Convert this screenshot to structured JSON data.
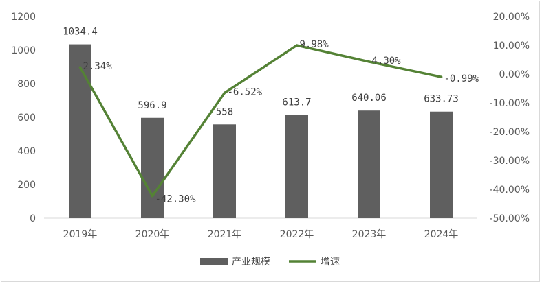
{
  "chart_data": {
    "type": "bar",
    "categories": [
      "2019年",
      "2020年",
      "2021年",
      "2022年",
      "2023年",
      "2024年"
    ],
    "series": [
      {
        "name": "产业规模",
        "type": "bar",
        "axis": "left",
        "color": "#5f5f5f",
        "values": [
          1034.4,
          596.9,
          558,
          613.7,
          640.06,
          633.73
        ],
        "labels": [
          "1034.4",
          "596.9",
          "558",
          "613.7",
          "640.06",
          "633.73"
        ]
      },
      {
        "name": "增速",
        "type": "line",
        "axis": "right",
        "color": "#548235",
        "values": [
          2.34,
          -42.3,
          -6.52,
          9.98,
          4.3,
          -0.99
        ],
        "labels": [
          "2.34%",
          "-42.30%",
          "-6.52%",
          "9.98%",
          "4.30%",
          "-0.99%"
        ]
      }
    ],
    "y_left": {
      "range": [
        0,
        1200
      ],
      "ticks": [
        0,
        200,
        400,
        600,
        800,
        1000,
        1200
      ],
      "tick_labels": [
        "0",
        "200",
        "400",
        "600",
        "800",
        "1000",
        "1200"
      ]
    },
    "y_right": {
      "range": [
        -50,
        20
      ],
      "ticks": [
        -50,
        -40,
        -30,
        -20,
        -10,
        0,
        10,
        20
      ],
      "tick_labels": [
        "-50.00%",
        "-40.00%",
        "-30.00%",
        "-20.00%",
        "-10.00%",
        "0.00%",
        "10.00%",
        "20.00%"
      ]
    },
    "grid": false,
    "legend": "bottom-center",
    "title": "",
    "xlabel": "",
    "ylabel": ""
  }
}
